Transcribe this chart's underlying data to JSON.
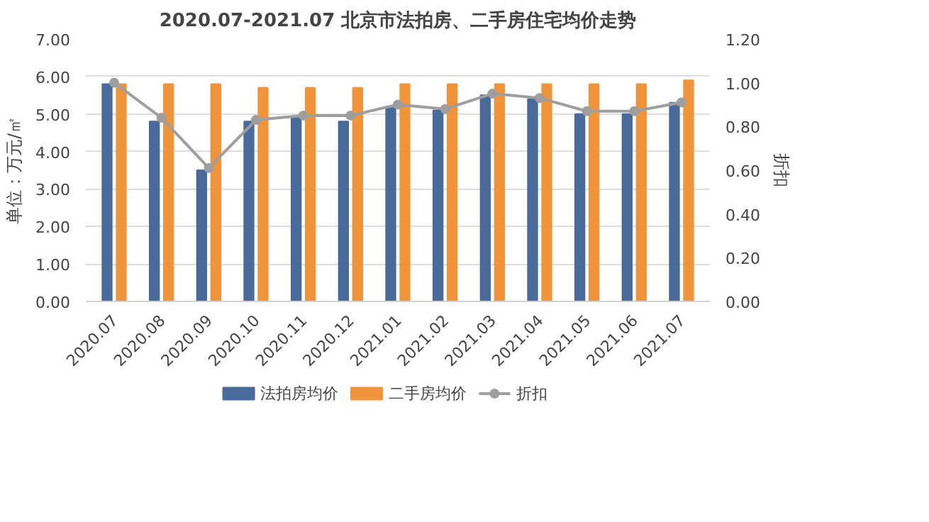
{
  "chart_data": {
    "type": "bar",
    "title": "2020.07-2021.07 北京市法拍房、二手房住宅均价走势",
    "categories": [
      "2020.07",
      "2020.08",
      "2020.09",
      "2020.10",
      "2020.11",
      "2020.12",
      "2021.01",
      "2021.02",
      "2021.03",
      "2021.04",
      "2021.05",
      "2021.06",
      "2021.07"
    ],
    "series": [
      {
        "name": "法拍房均价",
        "color": "#4a6a9c",
        "values": [
          5.8,
          4.8,
          3.5,
          4.8,
          4.9,
          4.8,
          5.2,
          5.1,
          5.5,
          5.4,
          5.0,
          5.0,
          5.3
        ]
      },
      {
        "name": "二手房均价",
        "color": "#f0943c",
        "values": [
          5.8,
          5.8,
          5.8,
          5.7,
          5.7,
          5.7,
          5.8,
          5.8,
          5.8,
          5.8,
          5.8,
          5.8,
          5.9
        ]
      },
      {
        "name": "折扣",
        "type": "line",
        "axis": "y2",
        "color": "#9e9e9e",
        "values": [
          1.0,
          0.84,
          0.61,
          0.83,
          0.85,
          0.85,
          0.9,
          0.88,
          0.95,
          0.93,
          0.87,
          0.87,
          0.91
        ]
      }
    ],
    "ylabel": "单位：万元/㎡",
    "y2label": "折扣",
    "ylim": [
      0,
      7
    ],
    "yticks": [
      {
        "value": 0,
        "label": "0.00"
      },
      {
        "value": 1,
        "label": "1.00"
      },
      {
        "value": 2,
        "label": "2.00"
      },
      {
        "value": 3,
        "label": "3.00"
      },
      {
        "value": 4,
        "label": "4.00"
      },
      {
        "value": 5,
        "label": "5.00"
      },
      {
        "value": 6,
        "label": "6.00"
      },
      {
        "value": 7,
        "label": "7.00"
      }
    ],
    "y2lim": [
      0,
      1.2
    ],
    "y2ticks": [
      {
        "value": 0,
        "label": "0.00"
      },
      {
        "value": 0.2,
        "label": "0.20"
      },
      {
        "value": 0.4,
        "label": "0.40"
      },
      {
        "value": 0.6,
        "label": "0.60"
      },
      {
        "value": 0.8,
        "label": "0.80"
      },
      {
        "value": 1.0,
        "label": "1.00"
      },
      {
        "value": 1.2,
        "label": "1.20"
      }
    ],
    "grid": "y",
    "legend": "bottom",
    "marker": "circle"
  }
}
